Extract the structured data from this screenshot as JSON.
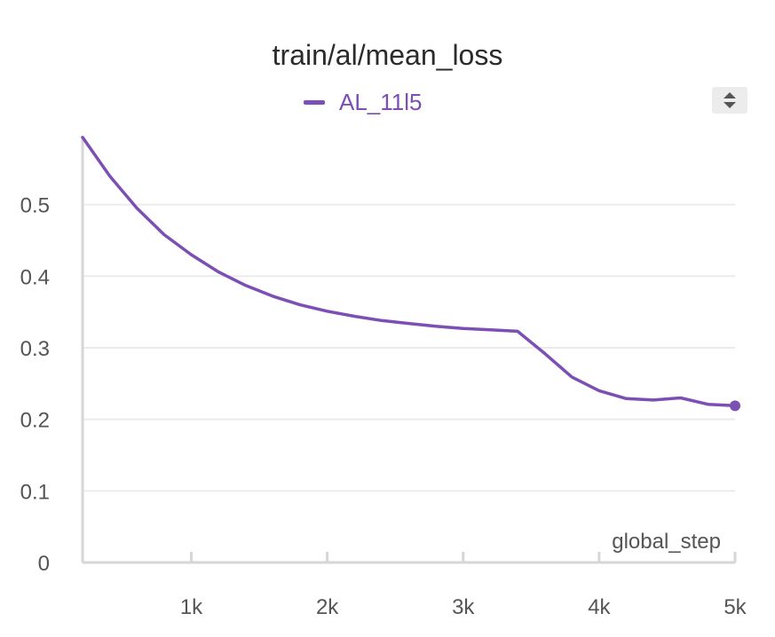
{
  "colors": {
    "series": "#7c4fb4",
    "grid": "#ebebeb",
    "axis": "#d6d6d6",
    "title": "#2b2b2b",
    "tick": "#555555"
  },
  "icons": {
    "legend_scroll": "up-down-arrows-icon"
  },
  "chart_data": {
    "type": "line",
    "title": "train/al/mean_loss",
    "xlabel": "global_step",
    "ylabel": "",
    "xlim": [
      200,
      5000
    ],
    "ylim": [
      0,
      0.595
    ],
    "grid": true,
    "legend": "top-center",
    "x_ticks": [
      {
        "value": 1000,
        "label": "1k"
      },
      {
        "value": 2000,
        "label": "2k"
      },
      {
        "value": 3000,
        "label": "3k"
      },
      {
        "value": 4000,
        "label": "4k"
      },
      {
        "value": 5000,
        "label": "5k"
      }
    ],
    "y_ticks": [
      {
        "value": 0,
        "label": "0"
      },
      {
        "value": 0.1,
        "label": "0.1"
      },
      {
        "value": 0.2,
        "label": "0.2"
      },
      {
        "value": 0.3,
        "label": "0.3"
      },
      {
        "value": 0.4,
        "label": "0.4"
      },
      {
        "value": 0.5,
        "label": "0.5"
      }
    ],
    "series": [
      {
        "name": "AL_11l5",
        "x": [
          200,
          400,
          600,
          800,
          1000,
          1200,
          1400,
          1600,
          1800,
          2000,
          2200,
          2400,
          2600,
          2800,
          3000,
          3200,
          3400,
          3600,
          3800,
          4000,
          4200,
          4400,
          4600,
          4800,
          5000
        ],
        "y": [
          0.594,
          0.54,
          0.495,
          0.458,
          0.43,
          0.406,
          0.387,
          0.372,
          0.36,
          0.351,
          0.344,
          0.338,
          0.334,
          0.33,
          0.327,
          0.325,
          0.323,
          0.292,
          0.259,
          0.24,
          0.229,
          0.227,
          0.23,
          0.221,
          0.219
        ]
      }
    ]
  }
}
